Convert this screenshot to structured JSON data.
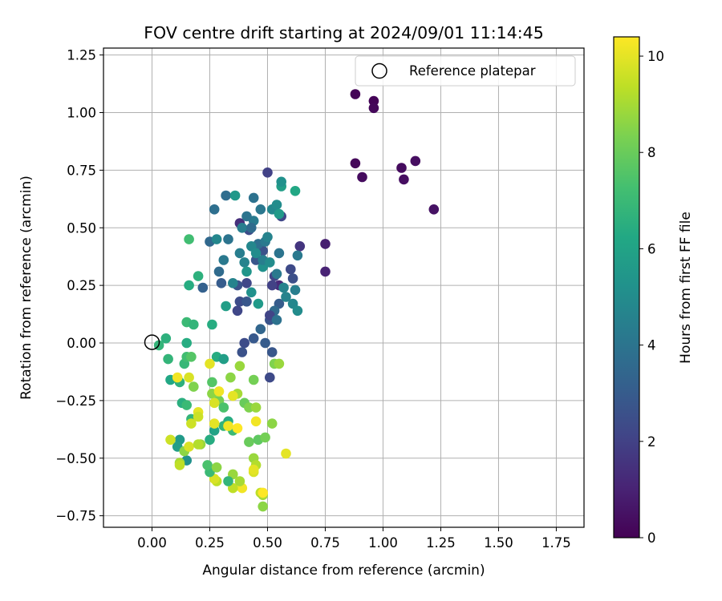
{
  "chart_data": {
    "type": "scatter",
    "title": "FOV centre drift starting at 2024/09/01 11:14:45",
    "xlabel": "Angular distance from reference (arcmin)",
    "ylabel": "Rotation from reference (arcmin)",
    "xlim": [
      -0.21,
      1.87
    ],
    "ylim": [
      -0.8,
      1.28
    ],
    "xticks": [
      "0.00",
      "0.25",
      "0.50",
      "0.75",
      "1.00",
      "1.25",
      "1.50",
      "1.75"
    ],
    "yticks": [
      "−0.75",
      "−0.50",
      "−0.25",
      "0.00",
      "0.25",
      "0.50",
      "0.75",
      "1.00",
      "1.25"
    ],
    "grid": true,
    "legend": {
      "position": "top-right",
      "entries": [
        "Reference platepar"
      ]
    },
    "reference_point": {
      "x": 0.0,
      "y": 0.0,
      "label": "Reference platepar"
    },
    "colorbar": {
      "label": "Hours from first FF file",
      "min": 0,
      "max": 10.4,
      "ticks": [
        "0",
        "2",
        "4",
        "6",
        "8",
        "10"
      ],
      "colormap": "viridis"
    },
    "points": [
      {
        "x": 0.88,
        "y": 1.08,
        "h": 0.1
      },
      {
        "x": 0.96,
        "y": 1.05,
        "h": 0.1
      },
      {
        "x": 0.96,
        "y": 1.02,
        "h": 0.2
      },
      {
        "x": 0.88,
        "y": 0.78,
        "h": 0.2
      },
      {
        "x": 0.91,
        "y": 0.72,
        "h": 0.3
      },
      {
        "x": 1.08,
        "y": 0.76,
        "h": 0.3
      },
      {
        "x": 1.09,
        "y": 0.71,
        "h": 0.4
      },
      {
        "x": 1.14,
        "y": 0.79,
        "h": 0.4
      },
      {
        "x": 1.22,
        "y": 0.58,
        "h": 0.5
      },
      {
        "x": 0.75,
        "y": 0.43,
        "h": 0.9
      },
      {
        "x": 0.75,
        "y": 0.31,
        "h": 1.0
      },
      {
        "x": 0.64,
        "y": 0.42,
        "h": 1.6
      },
      {
        "x": 0.55,
        "y": 0.25,
        "h": 1.2
      },
      {
        "x": 0.38,
        "y": 0.52,
        "h": 1.4
      },
      {
        "x": 0.5,
        "y": 0.74,
        "h": 2.0
      },
      {
        "x": 0.42,
        "y": 0.49,
        "h": 2.4
      },
      {
        "x": 0.56,
        "y": 0.55,
        "h": 2.2
      },
      {
        "x": 0.48,
        "y": 0.4,
        "h": 2.6
      },
      {
        "x": 0.6,
        "y": 0.32,
        "h": 2.3
      },
      {
        "x": 0.53,
        "y": 0.29,
        "h": 2.1
      },
      {
        "x": 0.61,
        "y": 0.28,
        "h": 2.5
      },
      {
        "x": 0.45,
        "y": 0.36,
        "h": 2.8
      },
      {
        "x": 0.52,
        "y": 0.25,
        "h": 2.0
      },
      {
        "x": 0.41,
        "y": 0.26,
        "h": 2.2
      },
      {
        "x": 0.22,
        "y": 0.24,
        "h": 3.2
      },
      {
        "x": 0.3,
        "y": 0.26,
        "h": 3.0
      },
      {
        "x": 0.37,
        "y": 0.25,
        "h": 2.6
      },
      {
        "x": 0.38,
        "y": 0.18,
        "h": 2.4
      },
      {
        "x": 0.37,
        "y": 0.14,
        "h": 2.2
      },
      {
        "x": 0.41,
        "y": 0.18,
        "h": 2.8
      },
      {
        "x": 0.47,
        "y": 0.06,
        "h": 3.4
      },
      {
        "x": 0.51,
        "y": 0.1,
        "h": 2.7
      },
      {
        "x": 0.55,
        "y": 0.17,
        "h": 3.0
      },
      {
        "x": 0.53,
        "y": 0.14,
        "h": 3.6
      },
      {
        "x": 0.51,
        "y": 0.12,
        "h": 2.1
      },
      {
        "x": 0.44,
        "y": 0.02,
        "h": 2.9
      },
      {
        "x": 0.4,
        "y": 0.0,
        "h": 2.4
      },
      {
        "x": 0.39,
        "y": -0.04,
        "h": 2.6
      },
      {
        "x": 0.49,
        "y": 0.0,
        "h": 3.0
      },
      {
        "x": 0.52,
        "y": -0.04,
        "h": 2.8
      },
      {
        "x": 0.51,
        "y": -0.15,
        "h": 2.3
      },
      {
        "x": 0.61,
        "y": 0.17,
        "h": 4.8
      },
      {
        "x": 0.63,
        "y": 0.14,
        "h": 5.0
      },
      {
        "x": 0.58,
        "y": 0.2,
        "h": 4.6
      },
      {
        "x": 0.62,
        "y": 0.23,
        "h": 4.4
      },
      {
        "x": 0.63,
        "y": 0.38,
        "h": 4.2
      },
      {
        "x": 0.55,
        "y": 0.39,
        "h": 4.0
      },
      {
        "x": 0.46,
        "y": 0.43,
        "h": 3.8
      },
      {
        "x": 0.49,
        "y": 0.44,
        "h": 4.2
      },
      {
        "x": 0.5,
        "y": 0.46,
        "h": 4.6
      },
      {
        "x": 0.44,
        "y": 0.53,
        "h": 4.3
      },
      {
        "x": 0.47,
        "y": 0.58,
        "h": 4.1
      },
      {
        "x": 0.44,
        "y": 0.63,
        "h": 3.9
      },
      {
        "x": 0.32,
        "y": 0.64,
        "h": 3.7
      },
      {
        "x": 0.36,
        "y": 0.64,
        "h": 5.5
      },
      {
        "x": 0.27,
        "y": 0.58,
        "h": 3.8
      },
      {
        "x": 0.25,
        "y": 0.44,
        "h": 3.5
      },
      {
        "x": 0.28,
        "y": 0.45,
        "h": 4.8
      },
      {
        "x": 0.33,
        "y": 0.45,
        "h": 4.0
      },
      {
        "x": 0.29,
        "y": 0.31,
        "h": 3.6
      },
      {
        "x": 0.31,
        "y": 0.36,
        "h": 4.2
      },
      {
        "x": 0.38,
        "y": 0.39,
        "h": 4.4
      },
      {
        "x": 0.4,
        "y": 0.35,
        "h": 4.6
      },
      {
        "x": 0.43,
        "y": 0.42,
        "h": 4.8
      },
      {
        "x": 0.45,
        "y": 0.39,
        "h": 5.0
      },
      {
        "x": 0.48,
        "y": 0.33,
        "h": 5.2
      },
      {
        "x": 0.41,
        "y": 0.31,
        "h": 5.4
      },
      {
        "x": 0.35,
        "y": 0.26,
        "h": 4.6
      },
      {
        "x": 0.32,
        "y": 0.16,
        "h": 5.8
      },
      {
        "x": 0.43,
        "y": 0.22,
        "h": 5.2
      },
      {
        "x": 0.46,
        "y": 0.17,
        "h": 5.6
      },
      {
        "x": 0.52,
        "y": 0.58,
        "h": 4.8
      },
      {
        "x": 0.54,
        "y": 0.6,
        "h": 5.0
      },
      {
        "x": 0.55,
        "y": 0.56,
        "h": 5.6
      },
      {
        "x": 0.56,
        "y": 0.68,
        "h": 5.8
      },
      {
        "x": 0.56,
        "y": 0.7,
        "h": 5.2
      },
      {
        "x": 0.62,
        "y": 0.66,
        "h": 6.2
      },
      {
        "x": 0.39,
        "y": 0.5,
        "h": 4.4
      },
      {
        "x": 0.41,
        "y": 0.55,
        "h": 4.0
      },
      {
        "x": 0.43,
        "y": 0.5,
        "h": 3.6
      },
      {
        "x": 0.48,
        "y": 0.36,
        "h": 4.4
      },
      {
        "x": 0.51,
        "y": 0.35,
        "h": 5.0
      },
      {
        "x": 0.54,
        "y": 0.3,
        "h": 4.2
      },
      {
        "x": 0.57,
        "y": 0.24,
        "h": 4.6
      },
      {
        "x": 0.54,
        "y": 0.1,
        "h": 3.9
      },
      {
        "x": 0.2,
        "y": 0.29,
        "h": 6.6
      },
      {
        "x": 0.16,
        "y": 0.25,
        "h": 6.4
      },
      {
        "x": 0.16,
        "y": 0.45,
        "h": 7.2
      },
      {
        "x": 0.26,
        "y": 0.08,
        "h": 6.4
      },
      {
        "x": 0.15,
        "y": 0.09,
        "h": 7.0
      },
      {
        "x": 0.18,
        "y": 0.08,
        "h": 6.8
      },
      {
        "x": 0.06,
        "y": 0.02,
        "h": 6.6
      },
      {
        "x": 0.03,
        "y": -0.01,
        "h": 6.8
      },
      {
        "x": 0.15,
        "y": 0.0,
        "h": 6.4
      },
      {
        "x": 0.07,
        "y": -0.07,
        "h": 6.8
      },
      {
        "x": 0.08,
        "y": -0.16,
        "h": 6.2
      },
      {
        "x": 0.12,
        "y": -0.17,
        "h": 6.6
      },
      {
        "x": 0.14,
        "y": -0.09,
        "h": 6.9
      },
      {
        "x": 0.15,
        "y": -0.06,
        "h": 7.2
      },
      {
        "x": 0.17,
        "y": -0.06,
        "h": 7.6
      },
      {
        "x": 0.13,
        "y": -0.26,
        "h": 6.5
      },
      {
        "x": 0.15,
        "y": -0.27,
        "h": 7.0
      },
      {
        "x": 0.18,
        "y": -0.19,
        "h": 8.4
      },
      {
        "x": 0.17,
        "y": -0.33,
        "h": 6.8
      },
      {
        "x": 0.12,
        "y": -0.42,
        "h": 5.6
      },
      {
        "x": 0.11,
        "y": -0.45,
        "h": 5.8
      },
      {
        "x": 0.15,
        "y": -0.51,
        "h": 5.2
      },
      {
        "x": 0.14,
        "y": -0.47,
        "h": 8.6
      },
      {
        "x": 0.21,
        "y": -0.44,
        "h": 8.8
      },
      {
        "x": 0.25,
        "y": -0.42,
        "h": 6.4
      },
      {
        "x": 0.27,
        "y": -0.38,
        "h": 6.0
      },
      {
        "x": 0.28,
        "y": -0.06,
        "h": 6.4
      },
      {
        "x": 0.31,
        "y": -0.07,
        "h": 5.8
      },
      {
        "x": 0.26,
        "y": -0.17,
        "h": 7.6
      },
      {
        "x": 0.26,
        "y": -0.22,
        "h": 8.6
      },
      {
        "x": 0.29,
        "y": -0.25,
        "h": 8.2
      },
      {
        "x": 0.31,
        "y": -0.28,
        "h": 7.4
      },
      {
        "x": 0.33,
        "y": -0.34,
        "h": 6.4
      },
      {
        "x": 0.31,
        "y": -0.36,
        "h": 6.8
      },
      {
        "x": 0.35,
        "y": -0.38,
        "h": 7.0
      },
      {
        "x": 0.34,
        "y": -0.15,
        "h": 8.6
      },
      {
        "x": 0.38,
        "y": -0.1,
        "h": 8.8
      },
      {
        "x": 0.37,
        "y": -0.22,
        "h": 9.0
      },
      {
        "x": 0.4,
        "y": -0.26,
        "h": 8.0
      },
      {
        "x": 0.42,
        "y": -0.28,
        "h": 8.4
      },
      {
        "x": 0.45,
        "y": -0.28,
        "h": 8.8
      },
      {
        "x": 0.44,
        "y": -0.16,
        "h": 8.2
      },
      {
        "x": 0.42,
        "y": -0.43,
        "h": 8.0
      },
      {
        "x": 0.44,
        "y": -0.5,
        "h": 8.8
      },
      {
        "x": 0.45,
        "y": -0.53,
        "h": 9.2
      },
      {
        "x": 0.44,
        "y": -0.56,
        "h": 9.8
      },
      {
        "x": 0.46,
        "y": -0.42,
        "h": 7.8
      },
      {
        "x": 0.49,
        "y": -0.41,
        "h": 8.2
      },
      {
        "x": 0.52,
        "y": -0.35,
        "h": 8.6
      },
      {
        "x": 0.47,
        "y": -0.65,
        "h": 9.4
      },
      {
        "x": 0.48,
        "y": -0.66,
        "h": 9.0
      },
      {
        "x": 0.48,
        "y": -0.71,
        "h": 8.6
      },
      {
        "x": 0.53,
        "y": -0.09,
        "h": 8.4
      },
      {
        "x": 0.55,
        "y": -0.09,
        "h": 8.8
      },
      {
        "x": 0.58,
        "y": -0.48,
        "h": 10.0
      },
      {
        "x": 0.39,
        "y": -0.63,
        "h": 10.2
      },
      {
        "x": 0.35,
        "y": -0.63,
        "h": 9.4
      },
      {
        "x": 0.38,
        "y": -0.6,
        "h": 9.0
      },
      {
        "x": 0.35,
        "y": -0.57,
        "h": 8.8
      },
      {
        "x": 0.33,
        "y": -0.6,
        "h": 6.8
      },
      {
        "x": 0.28,
        "y": -0.6,
        "h": 9.4
      },
      {
        "x": 0.27,
        "y": -0.59,
        "h": 9.8
      },
      {
        "x": 0.25,
        "y": -0.56,
        "h": 7.0
      },
      {
        "x": 0.24,
        "y": -0.53,
        "h": 7.4
      },
      {
        "x": 0.28,
        "y": -0.54,
        "h": 8.6
      },
      {
        "x": 0.08,
        "y": -0.42,
        "h": 9.6
      },
      {
        "x": 0.12,
        "y": -0.52,
        "h": 9.0
      },
      {
        "x": 0.12,
        "y": -0.53,
        "h": 9.4
      },
      {
        "x": 0.16,
        "y": -0.45,
        "h": 9.8
      },
      {
        "x": 0.2,
        "y": -0.44,
        "h": 9.2
      },
      {
        "x": 0.17,
        "y": -0.35,
        "h": 9.6
      },
      {
        "x": 0.2,
        "y": -0.3,
        "h": 10.0
      },
      {
        "x": 0.2,
        "y": -0.32,
        "h": 9.6
      },
      {
        "x": 0.16,
        "y": -0.15,
        "h": 9.8
      },
      {
        "x": 0.11,
        "y": -0.15,
        "h": 10.2
      },
      {
        "x": 0.25,
        "y": -0.09,
        "h": 10.0
      },
      {
        "x": 0.27,
        "y": -0.26,
        "h": 9.8
      },
      {
        "x": 0.29,
        "y": -0.21,
        "h": 10.2
      },
      {
        "x": 0.27,
        "y": -0.35,
        "h": 10.0
      },
      {
        "x": 0.33,
        "y": -0.36,
        "h": 10.2
      },
      {
        "x": 0.35,
        "y": -0.23,
        "h": 10.0
      },
      {
        "x": 0.37,
        "y": -0.37,
        "h": 10.4
      },
      {
        "x": 0.45,
        "y": -0.34,
        "h": 10.2
      },
      {
        "x": 0.44,
        "y": -0.55,
        "h": 10.0
      },
      {
        "x": 0.48,
        "y": -0.65,
        "h": 10.4
      }
    ]
  }
}
